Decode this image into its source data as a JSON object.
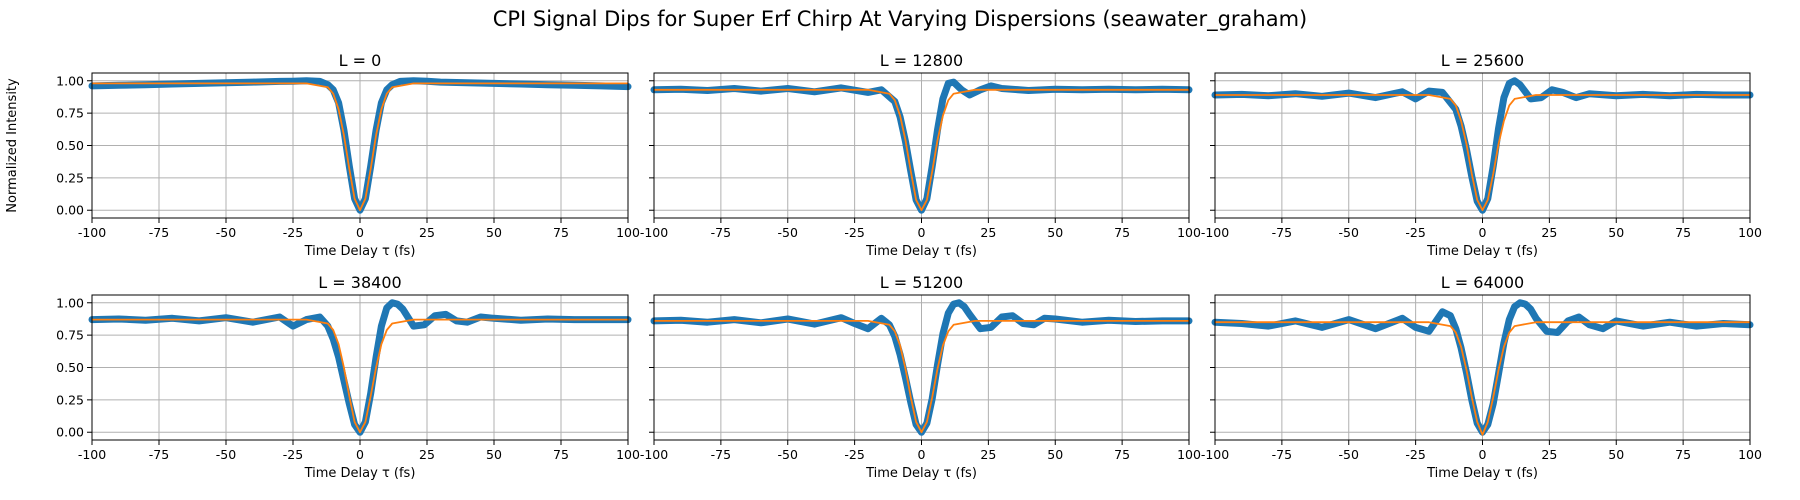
{
  "figure": {
    "title": "CPI Signal Dips for Super Erf Chirp At Varying Dispersions (seawater_graham)",
    "xlabel": "Time Delay τ (fs)",
    "ylabel": "Normalized Intensity",
    "colors": {
      "data": "#1f77b4",
      "fit": "#ff7f0e",
      "grid": "#b0b0b0"
    }
  },
  "chart_data": [
    {
      "type": "line",
      "title": "L = 0",
      "xlim": [
        -100,
        100
      ],
      "ylim": [
        -0.06,
        1.06
      ],
      "xticks": [
        -100,
        -75,
        -50,
        -25,
        0,
        25,
        50,
        75,
        100
      ],
      "yticks": [
        0.0,
        0.25,
        0.5,
        0.75,
        1.0
      ],
      "grid": true,
      "series": [
        {
          "kind": "data",
          "x": [
            -100,
            -90,
            -80,
            -70,
            -60,
            -50,
            -40,
            -30,
            -25,
            -20,
            -15,
            -12,
            -10,
            -8,
            -6,
            -4,
            -2,
            0,
            2,
            4,
            6,
            8,
            10,
            12,
            15,
            20,
            25,
            30,
            40,
            50,
            60,
            70,
            80,
            90,
            100
          ],
          "y": [
            0.96,
            0.965,
            0.97,
            0.975,
            0.98,
            0.985,
            0.99,
            0.995,
            0.997,
            1.0,
            0.995,
            0.97,
            0.93,
            0.83,
            0.62,
            0.34,
            0.09,
            0.0,
            0.09,
            0.34,
            0.62,
            0.83,
            0.93,
            0.97,
            0.995,
            1.0,
            0.997,
            0.99,
            0.985,
            0.98,
            0.975,
            0.97,
            0.965,
            0.96,
            0.955
          ]
        },
        {
          "kind": "fit",
          "x": [
            -100,
            -50,
            -20,
            -12,
            -10,
            -8,
            -6,
            -4,
            -2,
            0,
            2,
            4,
            6,
            8,
            10,
            12,
            20,
            50,
            100
          ],
          "y": [
            0.98,
            0.98,
            0.98,
            0.95,
            0.9,
            0.78,
            0.58,
            0.32,
            0.09,
            0.0,
            0.09,
            0.32,
            0.58,
            0.78,
            0.9,
            0.95,
            0.98,
            0.98,
            0.98
          ]
        }
      ]
    },
    {
      "type": "line",
      "title": "L = 12800",
      "xlim": [
        -100,
        100
      ],
      "ylim": [
        -0.06,
        1.06
      ],
      "xticks": [
        -100,
        -75,
        -50,
        -25,
        0,
        25,
        50,
        75,
        100
      ],
      "yticks": [
        0.0,
        0.25,
        0.5,
        0.75,
        1.0
      ],
      "grid": true,
      "series": [
        {
          "kind": "data",
          "x": [
            -100,
            -90,
            -80,
            -70,
            -60,
            -50,
            -40,
            -30,
            -20,
            -15,
            -10,
            -8,
            -6,
            -4,
            -2,
            0,
            2,
            4,
            6,
            8,
            10,
            12,
            15,
            18,
            22,
            26,
            30,
            40,
            50,
            60,
            70,
            80,
            90,
            100
          ],
          "y": [
            0.93,
            0.935,
            0.925,
            0.94,
            0.92,
            0.94,
            0.915,
            0.945,
            0.91,
            0.93,
            0.84,
            0.72,
            0.53,
            0.3,
            0.08,
            0.0,
            0.09,
            0.34,
            0.62,
            0.86,
            0.98,
            0.99,
            0.93,
            0.89,
            0.93,
            0.96,
            0.94,
            0.925,
            0.935,
            0.93,
            0.935,
            0.93,
            0.935,
            0.93
          ]
        },
        {
          "kind": "fit",
          "x": [
            -100,
            -50,
            -20,
            -12,
            -10,
            -8,
            -6,
            -4,
            -2,
            0,
            2,
            4,
            6,
            8,
            10,
            12,
            20,
            50,
            100
          ],
          "y": [
            0.93,
            0.93,
            0.93,
            0.9,
            0.85,
            0.73,
            0.54,
            0.3,
            0.08,
            0.0,
            0.08,
            0.3,
            0.54,
            0.73,
            0.85,
            0.9,
            0.93,
            0.93,
            0.93
          ]
        }
      ]
    },
    {
      "type": "line",
      "title": "L = 25600",
      "xlim": [
        -100,
        100
      ],
      "ylim": [
        -0.06,
        1.06
      ],
      "xticks": [
        -100,
        -75,
        -50,
        -25,
        0,
        25,
        50,
        75,
        100
      ],
      "yticks": [
        0.0,
        0.25,
        0.5,
        0.75,
        1.0
      ],
      "grid": true,
      "series": [
        {
          "kind": "data",
          "x": [
            -100,
            -90,
            -80,
            -70,
            -60,
            -50,
            -40,
            -30,
            -25,
            -20,
            -15,
            -10,
            -8,
            -6,
            -4,
            -2,
            0,
            2,
            4,
            6,
            8,
            10,
            12,
            14,
            18,
            22,
            26,
            30,
            35,
            40,
            50,
            60,
            70,
            80,
            90,
            100
          ],
          "y": [
            0.89,
            0.895,
            0.885,
            0.9,
            0.88,
            0.905,
            0.87,
            0.915,
            0.86,
            0.92,
            0.91,
            0.78,
            0.65,
            0.47,
            0.26,
            0.07,
            0.0,
            0.09,
            0.34,
            0.63,
            0.87,
            0.98,
            1.0,
            0.97,
            0.86,
            0.87,
            0.93,
            0.91,
            0.87,
            0.9,
            0.885,
            0.895,
            0.885,
            0.895,
            0.89,
            0.89
          ]
        },
        {
          "kind": "fit",
          "x": [
            -100,
            -50,
            -20,
            -12,
            -10,
            -8,
            -6,
            -4,
            -2,
            0,
            2,
            4,
            6,
            8,
            10,
            12,
            20,
            50,
            100
          ],
          "y": [
            0.89,
            0.89,
            0.89,
            0.86,
            0.81,
            0.69,
            0.51,
            0.28,
            0.08,
            0.0,
            0.08,
            0.28,
            0.51,
            0.69,
            0.81,
            0.86,
            0.89,
            0.89,
            0.89
          ]
        }
      ]
    },
    {
      "type": "line",
      "title": "L = 38400",
      "xlim": [
        -100,
        100
      ],
      "ylim": [
        -0.06,
        1.06
      ],
      "xticks": [
        -100,
        -75,
        -50,
        -25,
        0,
        25,
        50,
        75,
        100
      ],
      "yticks": [
        0.0,
        0.25,
        0.5,
        0.75,
        1.0
      ],
      "grid": true,
      "series": [
        {
          "kind": "data",
          "x": [
            -100,
            -90,
            -80,
            -70,
            -60,
            -50,
            -40,
            -30,
            -25,
            -20,
            -15,
            -12,
            -10,
            -8,
            -6,
            -4,
            -2,
            0,
            2,
            4,
            6,
            8,
            10,
            12,
            14,
            16,
            20,
            24,
            28,
            32,
            36,
            40,
            45,
            50,
            60,
            70,
            80,
            90,
            100
          ],
          "y": [
            0.87,
            0.875,
            0.865,
            0.88,
            0.86,
            0.885,
            0.85,
            0.89,
            0.82,
            0.87,
            0.89,
            0.82,
            0.72,
            0.58,
            0.4,
            0.22,
            0.06,
            0.0,
            0.08,
            0.3,
            0.58,
            0.82,
            0.96,
            1.0,
            0.99,
            0.95,
            0.82,
            0.83,
            0.9,
            0.91,
            0.86,
            0.85,
            0.89,
            0.88,
            0.865,
            0.875,
            0.87,
            0.87,
            0.87
          ]
        },
        {
          "kind": "fit",
          "x": [
            -100,
            -50,
            -20,
            -12,
            -10,
            -8,
            -6,
            -4,
            -2,
            0,
            2,
            4,
            6,
            8,
            10,
            12,
            20,
            50,
            100
          ],
          "y": [
            0.87,
            0.87,
            0.87,
            0.84,
            0.79,
            0.68,
            0.5,
            0.28,
            0.08,
            0.0,
            0.08,
            0.28,
            0.5,
            0.68,
            0.79,
            0.84,
            0.87,
            0.87,
            0.87
          ]
        }
      ]
    },
    {
      "type": "line",
      "title": "L = 51200",
      "xlim": [
        -100,
        100
      ],
      "ylim": [
        -0.06,
        1.06
      ],
      "xticks": [
        -100,
        -75,
        -50,
        -25,
        0,
        25,
        50,
        75,
        100
      ],
      "yticks": [
        0.0,
        0.25,
        0.5,
        0.75,
        1.0
      ],
      "grid": true,
      "series": [
        {
          "kind": "data",
          "x": [
            -100,
            -90,
            -80,
            -70,
            -60,
            -50,
            -40,
            -30,
            -25,
            -20,
            -15,
            -12,
            -10,
            -8,
            -6,
            -4,
            -2,
            0,
            2,
            4,
            6,
            8,
            10,
            12,
            14,
            16,
            18,
            22,
            26,
            30,
            34,
            38,
            42,
            46,
            50,
            60,
            70,
            80,
            90,
            100
          ],
          "y": [
            0.86,
            0.865,
            0.85,
            0.87,
            0.845,
            0.875,
            0.835,
            0.885,
            0.84,
            0.8,
            0.88,
            0.83,
            0.74,
            0.6,
            0.42,
            0.23,
            0.06,
            0.0,
            0.07,
            0.26,
            0.52,
            0.76,
            0.92,
            0.99,
            1.0,
            0.97,
            0.91,
            0.8,
            0.81,
            0.89,
            0.9,
            0.84,
            0.83,
            0.88,
            0.875,
            0.85,
            0.865,
            0.855,
            0.86,
            0.86
          ]
        },
        {
          "kind": "fit",
          "x": [
            -100,
            -50,
            -20,
            -12,
            -10,
            -8,
            -6,
            -4,
            -2,
            0,
            2,
            4,
            6,
            8,
            10,
            12,
            20,
            50,
            100
          ],
          "y": [
            0.86,
            0.86,
            0.86,
            0.83,
            0.78,
            0.67,
            0.49,
            0.27,
            0.08,
            0.0,
            0.08,
            0.27,
            0.49,
            0.67,
            0.78,
            0.83,
            0.86,
            0.86,
            0.86
          ]
        }
      ]
    },
    {
      "type": "line",
      "title": "L = 64000",
      "xlim": [
        -100,
        100
      ],
      "ylim": [
        -0.06,
        1.06
      ],
      "xticks": [
        -100,
        -75,
        -50,
        -25,
        0,
        25,
        50,
        75,
        100
      ],
      "yticks": [
        0.0,
        0.25,
        0.5,
        0.75,
        1.0
      ],
      "grid": true,
      "series": [
        {
          "kind": "data",
          "x": [
            -100,
            -90,
            -80,
            -70,
            -60,
            -50,
            -40,
            -30,
            -25,
            -20,
            -15,
            -12,
            -10,
            -8,
            -6,
            -4,
            -2,
            0,
            2,
            4,
            6,
            8,
            10,
            12,
            14,
            16,
            18,
            20,
            24,
            28,
            32,
            36,
            40,
            45,
            50,
            60,
            70,
            80,
            90,
            100
          ],
          "y": [
            0.85,
            0.84,
            0.82,
            0.86,
            0.81,
            0.87,
            0.8,
            0.88,
            0.81,
            0.78,
            0.93,
            0.9,
            0.8,
            0.65,
            0.46,
            0.25,
            0.07,
            0.0,
            0.06,
            0.22,
            0.45,
            0.69,
            0.87,
            0.97,
            1.0,
            0.99,
            0.95,
            0.88,
            0.78,
            0.77,
            0.86,
            0.89,
            0.83,
            0.8,
            0.86,
            0.82,
            0.85,
            0.82,
            0.84,
            0.83
          ]
        },
        {
          "kind": "fit",
          "x": [
            -100,
            -50,
            -20,
            -12,
            -10,
            -8,
            -6,
            -4,
            -2,
            0,
            2,
            4,
            6,
            8,
            10,
            12,
            20,
            50,
            100
          ],
          "y": [
            0.85,
            0.85,
            0.85,
            0.82,
            0.77,
            0.66,
            0.48,
            0.27,
            0.08,
            -0.02,
            0.08,
            0.27,
            0.48,
            0.66,
            0.77,
            0.82,
            0.85,
            0.85,
            0.85
          ]
        }
      ]
    }
  ]
}
